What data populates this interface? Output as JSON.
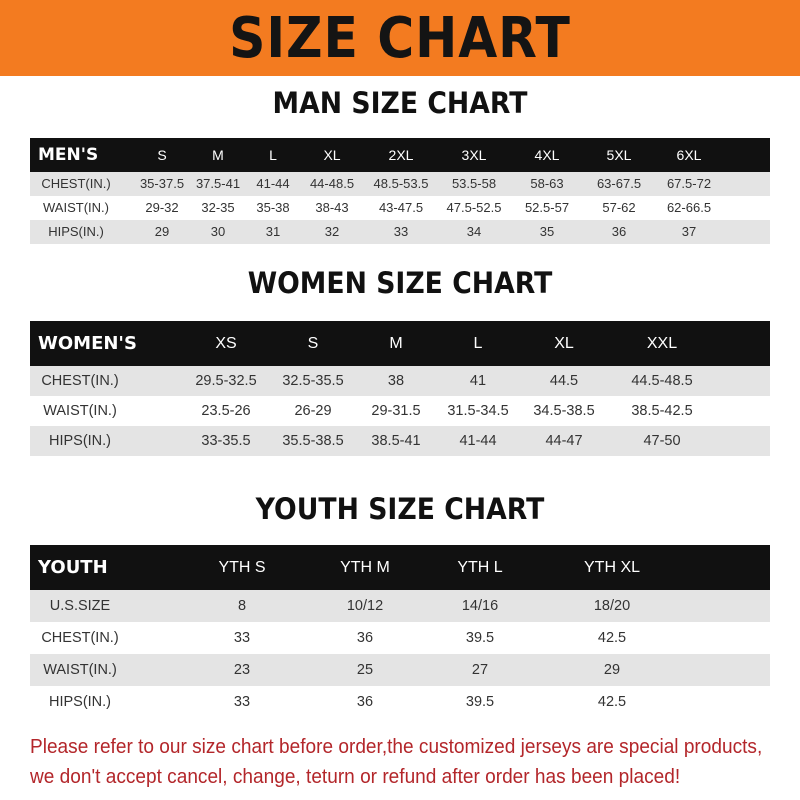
{
  "banner": {
    "title": "SIZE CHART",
    "color": "#f37b20"
  },
  "men": {
    "title": "MAN SIZE CHART",
    "header": [
      "MEN'S",
      "S",
      "M",
      "L",
      "XL",
      "2XL",
      "3XL",
      "4XL",
      "5XL",
      "6XL"
    ],
    "rows": [
      [
        "CHEST(IN.)",
        "35-37.5",
        "37.5-41",
        "41-44",
        "44-48.5",
        "48.5-53.5",
        "53.5-58",
        "58-63",
        "63-67.5",
        "67.5-72"
      ],
      [
        "WAIST(IN.)",
        "29-32",
        "32-35",
        "35-38",
        "38-43",
        "43-47.5",
        "47.5-52.5",
        "52.5-57",
        "57-62",
        "62-66.5"
      ],
      [
        "HIPS(IN.)",
        "29",
        "30",
        "31",
        "32",
        "33",
        "34",
        "35",
        "36",
        "37"
      ]
    ]
  },
  "women": {
    "title": "WOMEN SIZE CHART",
    "header": [
      "WOMEN'S",
      "XS",
      "S",
      "M",
      "L",
      "XL",
      "XXL"
    ],
    "rows": [
      [
        "CHEST(IN.)",
        "29.5-32.5",
        "32.5-35.5",
        "38",
        "41",
        "44.5",
        "44.5-48.5"
      ],
      [
        "WAIST(IN.)",
        "23.5-26",
        "26-29",
        "29-31.5",
        "31.5-34.5",
        "34.5-38.5",
        "38.5-42.5"
      ],
      [
        "HIPS(IN.)",
        "33-35.5",
        "35.5-38.5",
        "38.5-41",
        "41-44",
        "44-47",
        "47-50"
      ]
    ]
  },
  "youth": {
    "title": "YOUTH SIZE CHART",
    "header": [
      "YOUTH",
      "YTH S",
      "YTH M",
      "YTH L",
      "YTH XL"
    ],
    "rows": [
      [
        "U.S.SIZE",
        "8",
        "10/12",
        "14/16",
        "18/20"
      ],
      [
        "CHEST(IN.)",
        "33",
        "36",
        "39.5",
        "42.5"
      ],
      [
        "WAIST(IN.)",
        "23",
        "25",
        "27",
        "29"
      ],
      [
        "HIPS(IN.)",
        "33",
        "36",
        "39.5",
        "42.5"
      ]
    ]
  },
  "notice": {
    "line1": "Please refer to our size chart before order,the customized jerseys are special products,",
    "line2": "we don't accept cancel, change, teturn or refund after order has been placed!",
    "color": "#b3262a"
  }
}
